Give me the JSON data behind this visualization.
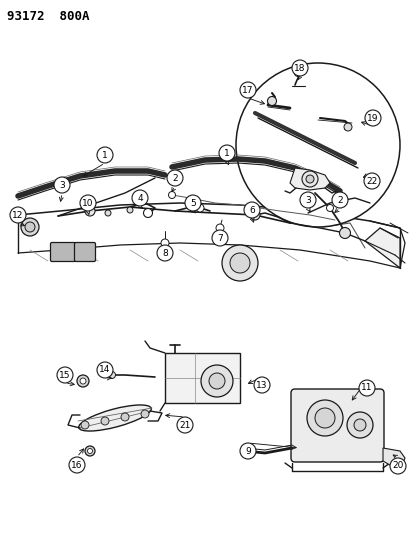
{
  "title": "93172  800A",
  "bg": "#ffffff",
  "lc": "#1a1a1a",
  "fig_w": 4.14,
  "fig_h": 5.33,
  "dpi": 100
}
